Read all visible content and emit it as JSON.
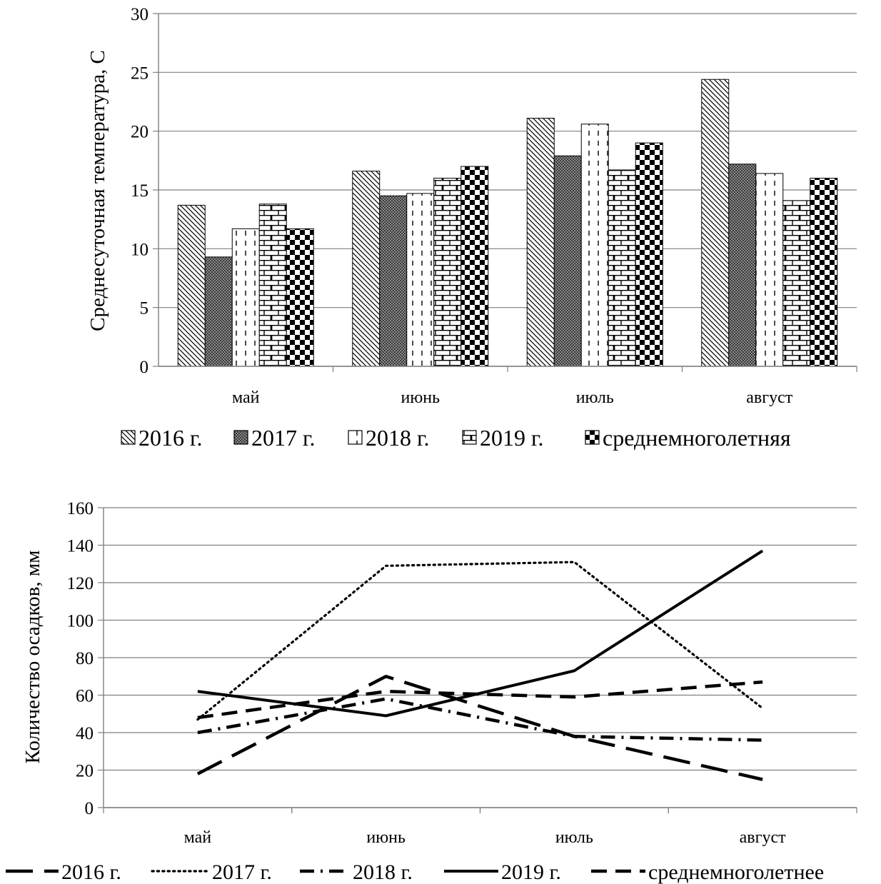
{
  "chart_data": [
    {
      "type": "bar",
      "title": "",
      "xlabel": "",
      "ylabel": "Среднесуточная температура, С",
      "ylim": [
        0,
        30
      ],
      "yticks": [
        0,
        5,
        10,
        15,
        20,
        25,
        30
      ],
      "grid": true,
      "legend_position": "bottom",
      "categories": [
        "май",
        "июнь",
        "июль",
        "август"
      ],
      "series": [
        {
          "name": "2016 г.",
          "pattern": "diagonal-hatch",
          "values": [
            13.7,
            16.6,
            21.1,
            24.4
          ]
        },
        {
          "name": "2017 г.",
          "pattern": "dark-grey-dots",
          "values": [
            9.3,
            14.5,
            17.9,
            17.2
          ]
        },
        {
          "name": "2018 г.",
          "pattern": "dashed-vertical",
          "values": [
            11.7,
            14.7,
            20.6,
            16.4
          ]
        },
        {
          "name": "2019 г.",
          "pattern": "brick",
          "values": [
            13.8,
            16.0,
            16.7,
            14.1
          ]
        },
        {
          "name": "среднемноголетняя",
          "pattern": "checker",
          "values": [
            11.7,
            17.0,
            19.0,
            16.0
          ]
        }
      ]
    },
    {
      "type": "line",
      "title": "",
      "xlabel": "",
      "ylabel": "Количество осадков, мм",
      "ylim": [
        0,
        160
      ],
      "yticks": [
        0,
        20,
        40,
        60,
        80,
        100,
        120,
        140,
        160
      ],
      "grid": true,
      "legend_position": "bottom",
      "categories": [
        "май",
        "июнь",
        "июль",
        "август"
      ],
      "series": [
        {
          "name": "2016 г.",
          "dash": "long-dash",
          "values": [
            18,
            70,
            38,
            15
          ]
        },
        {
          "name": "2017 г.",
          "dash": "dotted",
          "values": [
            47,
            129,
            131,
            53
          ]
        },
        {
          "name": "2018 г.",
          "dash": "dash-dot",
          "values": [
            40,
            58,
            38,
            36
          ]
        },
        {
          "name": "2019 г.",
          "dash": "solid",
          "values": [
            62,
            49,
            73,
            137
          ]
        },
        {
          "name": "среднемноголетнее",
          "dash": "dashed",
          "values": [
            48,
            62,
            59,
            67
          ]
        }
      ]
    }
  ]
}
